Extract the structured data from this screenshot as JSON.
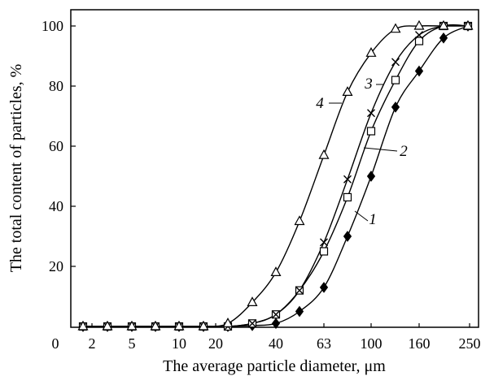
{
  "chart_data": {
    "type": "line",
    "xlabel": "The average particle diameter, μm",
    "ylabel": "The total content of particles, %",
    "ylim": [
      0,
      105
    ],
    "x_scale": "categorical-uneven",
    "grid": false,
    "legend": "none",
    "x_tick_labels": [
      "0",
      "2",
      "5",
      "10",
      "20",
      "40",
      "63",
      "100",
      "160",
      "250"
    ],
    "y_ticks": [
      20,
      40,
      60,
      80,
      100
    ],
    "series": [
      {
        "name": "1",
        "marker": "diamond-filled",
        "x": [
          1.6,
          2.5,
          4,
          6.3,
          10,
          16,
          25,
          31.5,
          40,
          50,
          63,
          80,
          100,
          125,
          160,
          200,
          240
        ],
        "y": [
          0,
          0,
          0,
          0,
          0,
          0,
          0,
          0.3,
          1,
          5,
          13,
          30,
          50,
          73,
          85,
          96,
          100
        ]
      },
      {
        "name": "2",
        "marker": "square-open",
        "x": [
          1.6,
          2.5,
          4,
          6.3,
          10,
          16,
          25,
          31.5,
          40,
          50,
          63,
          80,
          100,
          125,
          160,
          200,
          240
        ],
        "y": [
          0,
          0,
          0,
          0,
          0,
          0,
          0,
          1,
          4,
          12,
          25,
          43,
          65,
          82,
          95,
          100,
          100
        ]
      },
      {
        "name": "3",
        "marker": "cross",
        "x": [
          1.6,
          2.5,
          4,
          6.3,
          10,
          16,
          25,
          31.5,
          40,
          50,
          63,
          80,
          100,
          125,
          160,
          200,
          240
        ],
        "y": [
          0,
          0,
          0,
          0,
          0,
          0,
          0,
          1,
          4,
          12,
          28,
          49,
          71,
          88,
          97,
          100,
          100
        ]
      },
      {
        "name": "4",
        "marker": "triangle-open",
        "x": [
          1.6,
          2.5,
          4,
          6.3,
          10,
          16,
          25,
          31.5,
          40,
          50,
          63,
          80,
          100,
          125,
          160,
          200,
          240
        ],
        "y": [
          0,
          0,
          0,
          0,
          0,
          0,
          1,
          8,
          18,
          35,
          57,
          78,
          91,
          99,
          100,
          100,
          100
        ]
      }
    ]
  }
}
